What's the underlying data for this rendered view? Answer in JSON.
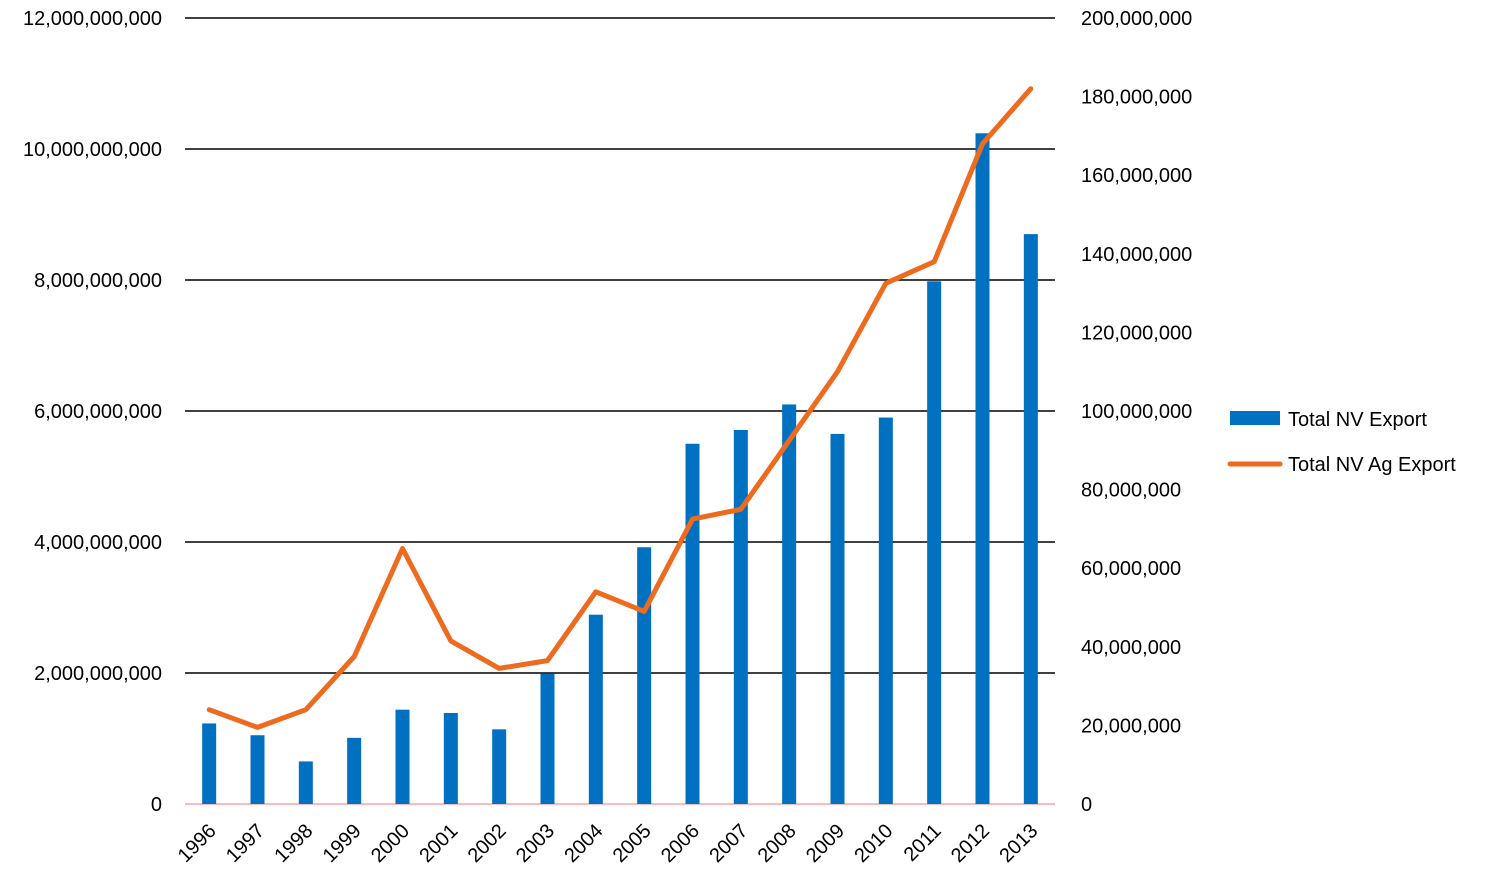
{
  "chart_data": {
    "type": "bar",
    "categories": [
      "1996",
      "1997",
      "1998",
      "1999",
      "2000",
      "2001",
      "2002",
      "2003",
      "2004",
      "2005",
      "2006",
      "2007",
      "2008",
      "2009",
      "2010",
      "2011",
      "2012",
      "2013"
    ],
    "series": [
      {
        "name": "Total NV Export",
        "type": "bar",
        "axis": "left",
        "color": "#0070C0",
        "values": [
          1230000000,
          1050000000,
          650000000,
          1010000000,
          1440000000,
          1390000000,
          1140000000,
          1990000000,
          2890000000,
          3920000000,
          5500000000,
          5710000000,
          6100000000,
          5650000000,
          5900000000,
          7980000000,
          10240000000,
          8700000000
        ]
      },
      {
        "name": "Total NV Ag Export",
        "type": "line",
        "axis": "right",
        "color": "#ED6A1E",
        "values": [
          24000000,
          19500000,
          24000000,
          37500000,
          65000000,
          41500000,
          34500000,
          36500000,
          54000000,
          49000000,
          72500000,
          75000000,
          92500000,
          110000000,
          132500000,
          138000000,
          168000000,
          182000000
        ]
      }
    ],
    "y_left": {
      "ylim": [
        0,
        12000000000
      ],
      "tick_labels": [
        "0",
        "2,000,000,000",
        "4,000,000,000",
        "6,000,000,000",
        "8,000,000,000",
        "10,000,000,000",
        "12,000,000,000"
      ]
    },
    "y_right": {
      "ylim": [
        0,
        200000000
      ],
      "tick_labels": [
        "0",
        "20,000,000",
        "40,000,000",
        "60,000,000",
        "80,000,000",
        "100,000,000",
        "120,000,000",
        "140,000,000",
        "160,000,000",
        "180,000,000",
        "200,000,000"
      ]
    },
    "title": "",
    "xlabel": "",
    "ylabel": "",
    "grid": true,
    "legend_position": "right",
    "colors": {
      "gridline": "#000000",
      "baseline": "#F2A7A7"
    }
  }
}
